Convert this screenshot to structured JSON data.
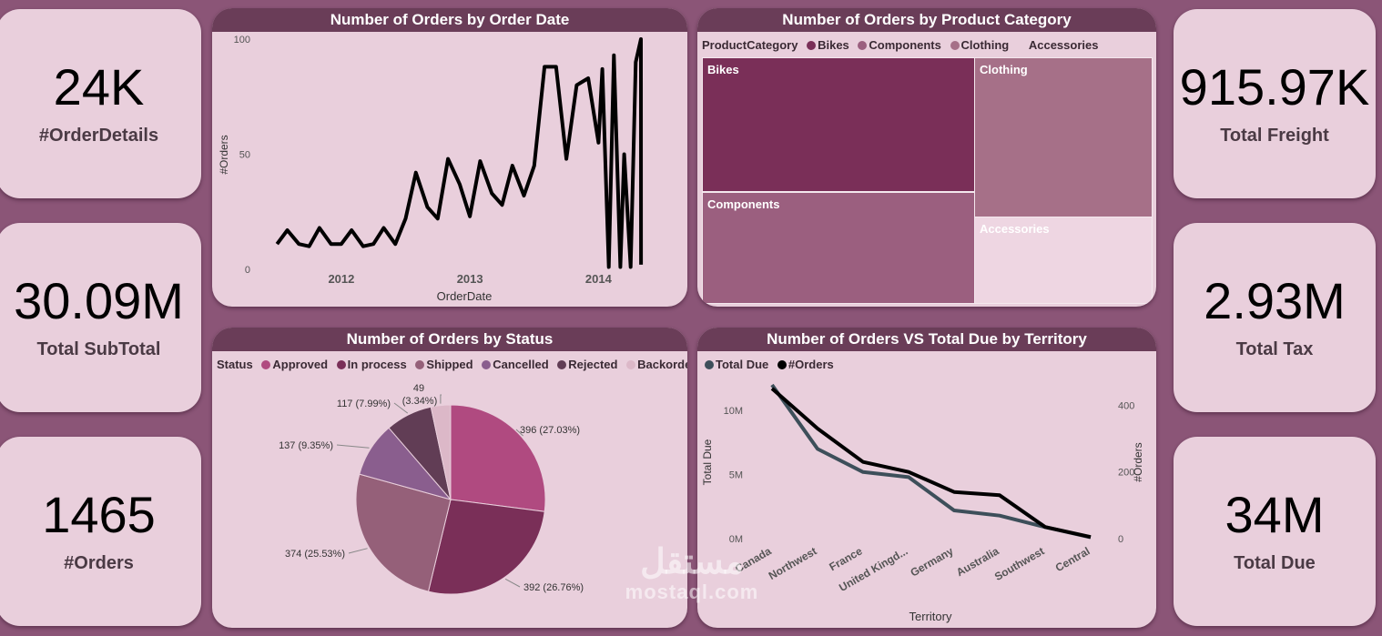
{
  "kpis_left": [
    {
      "value": "24K",
      "label": "#OrderDetails"
    },
    {
      "value": "30.09M",
      "label": "Total SubTotal"
    },
    {
      "value": "1465",
      "label": "#Orders"
    }
  ],
  "kpis_right": [
    {
      "value": "915.97K",
      "label": "Total Freight"
    },
    {
      "value": "2.93M",
      "label": "Total Tax"
    },
    {
      "value": "34M",
      "label": "Total Due"
    }
  ],
  "colors": {
    "background": "#8b5577",
    "card": "#e9cfdc",
    "title_bar": "#6a3d58",
    "line": "#000000",
    "total_due": "#3d4f5a"
  },
  "watermark": {
    "arabic": "مستقل",
    "latin": "mostaql.com"
  },
  "chart_data": [
    {
      "id": "orders_by_date",
      "type": "line",
      "title": "Number of Orders by Order Date",
      "xlabel": "OrderDate",
      "ylabel": "#Orders",
      "x_ticks": [
        "2012",
        "2013",
        "2014"
      ],
      "y_ticks": [
        "0",
        "50",
        "100"
      ],
      "xlim": [
        2011.42,
        2014.5
      ],
      "ylim": [
        0,
        100
      ],
      "x_tick_values": [
        2012,
        2013,
        2014
      ],
      "y_tick_values": [
        0,
        50,
        100
      ],
      "x": [
        2011.5,
        2011.58,
        2011.67,
        2011.75,
        2011.83,
        2011.92,
        2012.0,
        2012.08,
        2012.17,
        2012.25,
        2012.33,
        2012.42,
        2012.5,
        2012.58,
        2012.67,
        2012.75,
        2012.83,
        2012.92,
        2013.0,
        2013.08,
        2013.17,
        2013.25,
        2013.33,
        2013.42,
        2013.5,
        2013.58,
        2013.67,
        2013.75,
        2013.83,
        2013.92,
        2014.0,
        2014.03,
        2014.08,
        2014.12,
        2014.17,
        2014.2,
        2014.25,
        2014.29,
        2014.33
      ],
      "values": [
        11,
        17,
        11,
        10,
        18,
        11,
        11,
        17,
        10,
        11,
        18,
        11,
        22,
        42,
        27,
        22,
        48,
        37,
        23,
        47,
        33,
        28,
        45,
        32,
        45,
        88,
        88,
        48,
        80,
        83,
        55,
        87,
        1,
        93,
        1,
        50,
        1,
        90,
        100
      ],
      "values_tail": [
        2
      ]
    },
    {
      "id": "orders_by_category",
      "type": "treemap",
      "title": "Number of Orders by Product Category",
      "legend_title": "ProductCategory",
      "categories": [
        "Bikes",
        "Components",
        "Clothing",
        "Accessories"
      ],
      "values": [
        40,
        32,
        22,
        12
      ],
      "colors": [
        "#7a2f58",
        "#9b5f7f",
        "#a67088",
        "#eed6e2"
      ]
    },
    {
      "id": "orders_by_status",
      "type": "pie",
      "title": "Number of Orders by Status",
      "legend_title": "Status",
      "categories": [
        "Approved",
        "In process",
        "Shipped",
        "Cancelled",
        "Rejected",
        "Backordered"
      ],
      "values": [
        396,
        392,
        374,
        137,
        117,
        49
      ],
      "percents": [
        "27.03%",
        "26.76%",
        "25.53%",
        "9.35%",
        "7.99%",
        "3.34%"
      ],
      "labels": [
        "396 (27.03%)",
        "392 (26.76%)",
        "374 (25.53%)",
        "137 (9.35%)",
        "117 (7.99%)",
        "49",
        "(3.34%)"
      ],
      "colors": [
        "#b04a80",
        "#7a2f58",
        "#956079",
        "#8a5e8e",
        "#613d55",
        "#dcb8c8"
      ]
    },
    {
      "id": "orders_vs_due_by_territory",
      "type": "line",
      "title": "Number of Orders VS Total Due by Territory",
      "xlabel": "Territory",
      "ylabel": "Total Due",
      "y2label": "#Orders",
      "categories": [
        "Canada",
        "Northwest",
        "France",
        "United Kingd...",
        "Germany",
        "Australia",
        "Southwest",
        "Central"
      ],
      "y_ticks": [
        "0M",
        "5M",
        "10M"
      ],
      "y2_ticks": [
        "0",
        "200",
        "400"
      ],
      "ylim": [
        0,
        12.5
      ],
      "y2lim": [
        0,
        480
      ],
      "series": [
        {
          "name": "Total Due",
          "axis": "left",
          "unit": "M",
          "values": [
            12.0,
            7.0,
            5.2,
            4.8,
            2.2,
            1.8,
            0.9,
            0.1
          ],
          "color": "#3d4f5a"
        },
        {
          "name": "#Orders",
          "axis": "right",
          "values": [
            450,
            330,
            230,
            200,
            140,
            130,
            35,
            5
          ],
          "color": "#000000"
        }
      ]
    }
  ]
}
